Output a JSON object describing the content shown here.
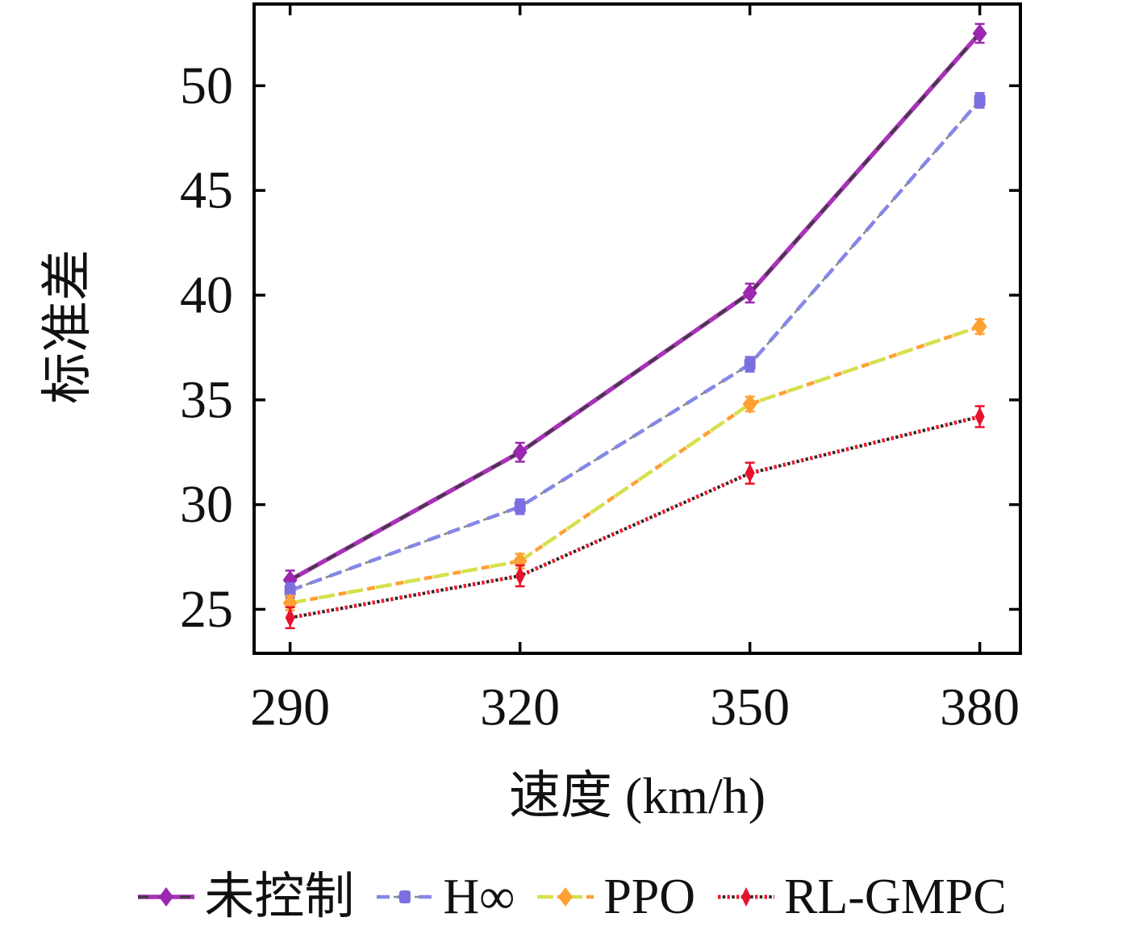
{
  "chart_data": {
    "type": "line",
    "x": [
      290,
      320,
      350,
      380
    ],
    "xticks": [
      "290",
      "320",
      "350",
      "380"
    ],
    "yticks": [
      "25",
      "30",
      "35",
      "40",
      "45",
      "50"
    ],
    "ytick_values": [
      25,
      30,
      35,
      40,
      45,
      50
    ],
    "xlim": [
      285.3,
      385.3
    ],
    "ylim": [
      22.9,
      53.9
    ],
    "xlabel": "速度 (km/h)",
    "ylabel": "标准差",
    "grid": false,
    "legend_position": "bottom",
    "series": [
      {
        "name": "未控制",
        "values": [
          26.4,
          32.5,
          40.1,
          52.5
        ],
        "err": 0.45,
        "line_style": "solid-dark",
        "marker": "diamond",
        "color": "#A832B8",
        "color2": "#3C3C3C",
        "marker_color": "#9C27B0"
      },
      {
        "name": "H∞",
        "values": [
          25.9,
          29.9,
          36.7,
          49.3
        ],
        "err": 0.35,
        "line_style": "dashed",
        "marker": "square",
        "color": "#8587E8",
        "color2": "#8A8A8A",
        "marker_color": "#7B6FE0"
      },
      {
        "name": "PPO",
        "values": [
          25.3,
          27.3,
          34.8,
          38.5
        ],
        "err": 0.35,
        "line_style": "dashdot",
        "marker": "diamond",
        "color": "#D6E04B",
        "color2": "#FFA033",
        "marker_color": "#FFA033"
      },
      {
        "name": "RL-GMPC",
        "values": [
          24.6,
          26.6,
          31.5,
          34.2
        ],
        "err": 0.5,
        "line_style": "dotted",
        "marker": "thin-diamond",
        "color": "#EC1C2E",
        "color2": "#2A2A2A",
        "marker_color": "#E8112D"
      }
    ]
  }
}
